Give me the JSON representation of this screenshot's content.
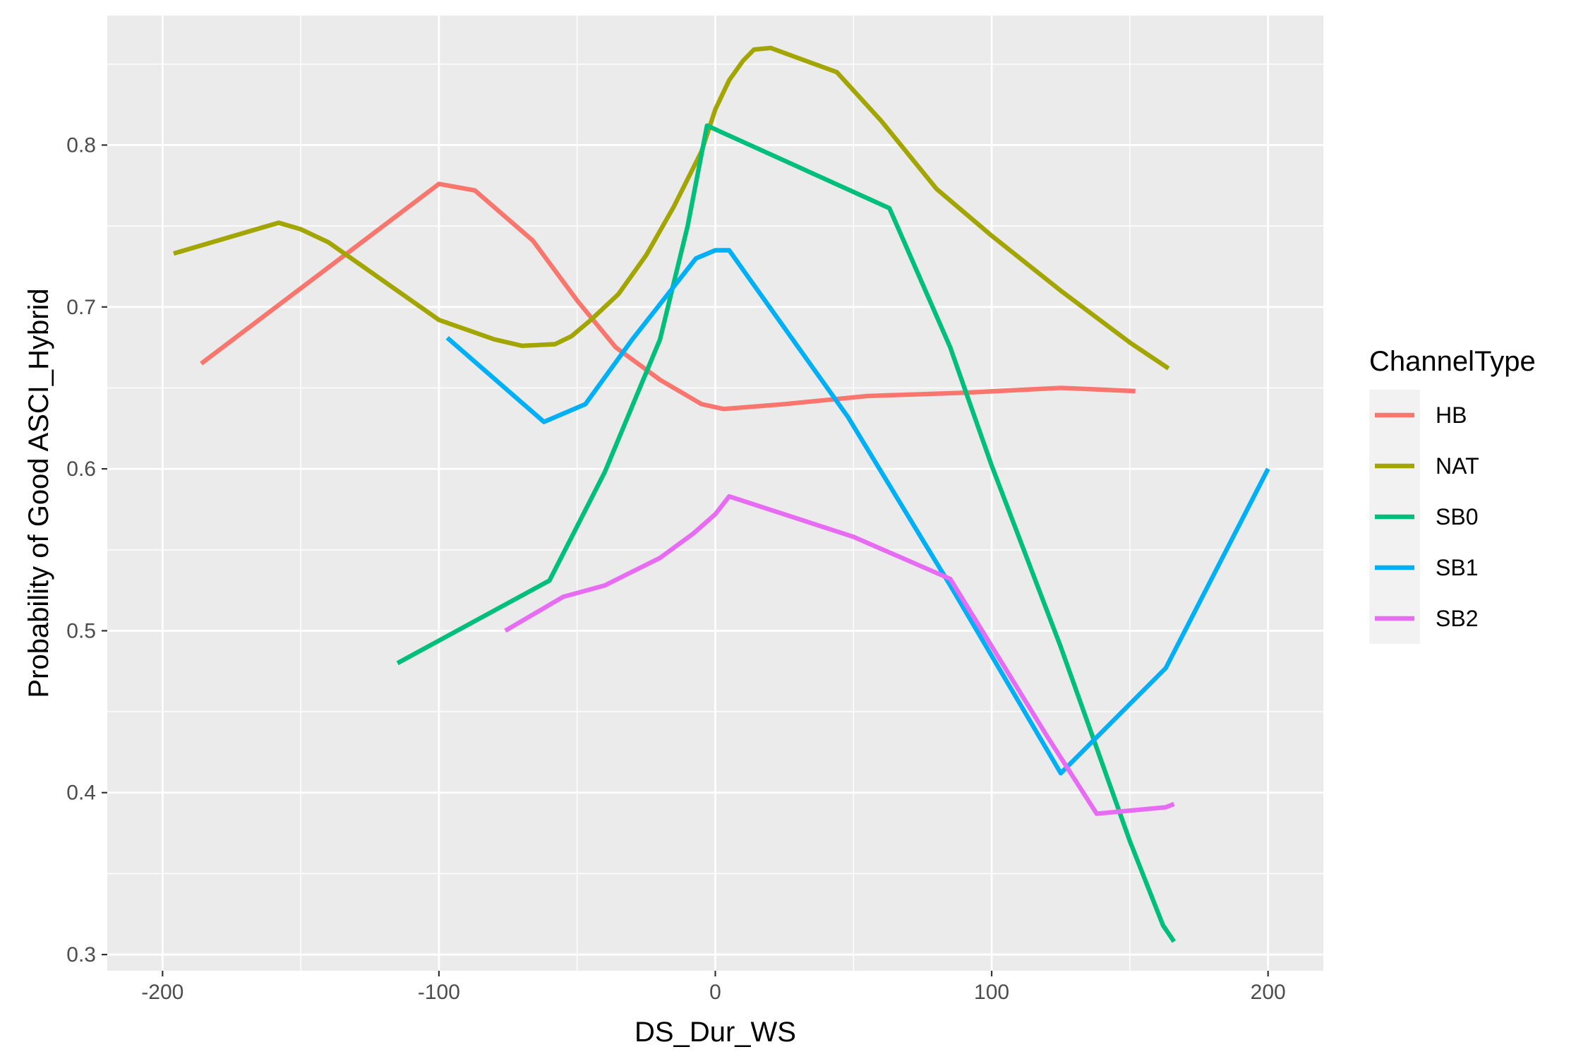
{
  "chart_data": {
    "type": "line",
    "title": "",
    "xlabel": "DS_Dur_WS",
    "ylabel": "Probability of Good ASCI_Hybrid",
    "xlim": [
      -220,
      220
    ],
    "ylim": [
      0.29,
      0.88
    ],
    "x_ticks": [
      -200,
      -100,
      0,
      100,
      200
    ],
    "x_tick_labels": [
      "-200",
      "-100",
      "0",
      "100",
      "200"
    ],
    "y_ticks": [
      0.3,
      0.4,
      0.5,
      0.6,
      0.7,
      0.8
    ],
    "y_tick_labels": [
      "0.3",
      "0.4",
      "0.5",
      "0.6",
      "0.7",
      "0.8"
    ],
    "grid": true,
    "legend": {
      "title": "ChannelType",
      "position": "right"
    },
    "series": [
      {
        "name": "HB",
        "color": "#F8766D",
        "points": [
          [
            -186,
            0.665
          ],
          [
            -100,
            0.776
          ],
          [
            -87,
            0.772
          ],
          [
            -66,
            0.741
          ],
          [
            -50,
            0.704
          ],
          [
            -36,
            0.675
          ],
          [
            -20,
            0.655
          ],
          [
            -5,
            0.64
          ],
          [
            3,
            0.637
          ],
          [
            25,
            0.64
          ],
          [
            55,
            0.645
          ],
          [
            90,
            0.647
          ],
          [
            125,
            0.65
          ],
          [
            152,
            0.648
          ]
        ]
      },
      {
        "name": "NAT",
        "color": "#A3A500",
        "points": [
          [
            -196,
            0.733
          ],
          [
            -158,
            0.752
          ],
          [
            -150,
            0.748
          ],
          [
            -140,
            0.74
          ],
          [
            -120,
            0.716
          ],
          [
            -100,
            0.692
          ],
          [
            -90,
            0.686
          ],
          [
            -80,
            0.68
          ],
          [
            -70,
            0.676
          ],
          [
            -58,
            0.677
          ],
          [
            -52,
            0.682
          ],
          [
            -45,
            0.692
          ],
          [
            -35,
            0.708
          ],
          [
            -25,
            0.732
          ],
          [
            -15,
            0.762
          ],
          [
            -5,
            0.796
          ],
          [
            0,
            0.822
          ],
          [
            5,
            0.84
          ],
          [
            10,
            0.852
          ],
          [
            14,
            0.859
          ],
          [
            20,
            0.86
          ],
          [
            44,
            0.845
          ],
          [
            60,
            0.815
          ],
          [
            80,
            0.773
          ],
          [
            100,
            0.744
          ],
          [
            125,
            0.71
          ],
          [
            150,
            0.678
          ],
          [
            164,
            0.662
          ]
        ]
      },
      {
        "name": "SB0",
        "color": "#00BF7D",
        "points": [
          [
            -115,
            0.48
          ],
          [
            -60,
            0.531
          ],
          [
            -40,
            0.598
          ],
          [
            -20,
            0.68
          ],
          [
            -10,
            0.75
          ],
          [
            -3,
            0.812
          ],
          [
            63,
            0.761
          ],
          [
            85,
            0.675
          ],
          [
            100,
            0.602
          ],
          [
            125,
            0.49
          ],
          [
            150,
            0.37
          ],
          [
            162,
            0.318
          ],
          [
            166,
            0.308
          ]
        ]
      },
      {
        "name": "SB1",
        "color": "#00B0F6",
        "points": [
          [
            -97,
            0.681
          ],
          [
            -62,
            0.629
          ],
          [
            -47,
            0.64
          ],
          [
            -30,
            0.68
          ],
          [
            -7,
            0.73
          ],
          [
            0,
            0.735
          ],
          [
            5,
            0.735
          ],
          [
            48,
            0.632
          ],
          [
            85,
            0.528
          ],
          [
            125,
            0.412
          ],
          [
            163,
            0.477
          ],
          [
            200,
            0.6
          ]
        ]
      },
      {
        "name": "SB2",
        "color": "#E76BF3",
        "points": [
          [
            -76,
            0.5
          ],
          [
            -55,
            0.521
          ],
          [
            -40,
            0.528
          ],
          [
            -20,
            0.545
          ],
          [
            -8,
            0.56
          ],
          [
            0,
            0.572
          ],
          [
            5,
            0.583
          ],
          [
            50,
            0.558
          ],
          [
            85,
            0.532
          ],
          [
            120,
            0.435
          ],
          [
            138,
            0.387
          ],
          [
            163,
            0.391
          ],
          [
            166,
            0.393
          ]
        ]
      }
    ]
  }
}
